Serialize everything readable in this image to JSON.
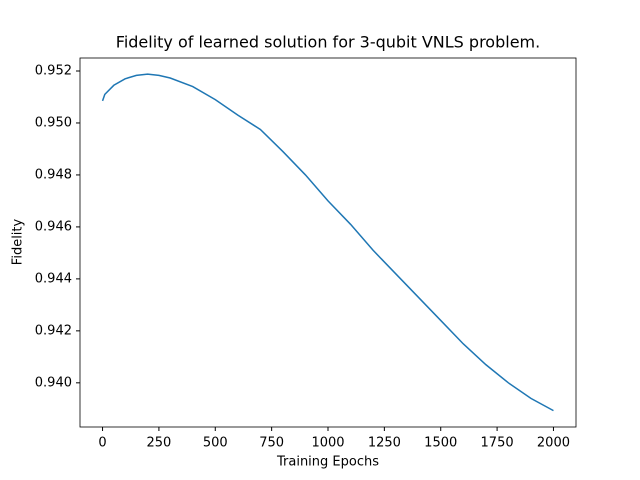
{
  "chart_data": {
    "type": "line",
    "title": "Fidelity of learned solution for 3-qubit VNLS problem.",
    "x_label": "Training Epochs",
    "y_label": "Fidelity",
    "x": [
      0,
      10,
      50,
      100,
      150,
      200,
      250,
      300,
      400,
      500,
      600,
      700,
      800,
      900,
      1000,
      1100,
      1200,
      1300,
      1400,
      1500,
      1600,
      1700,
      1800,
      1900,
      2000
    ],
    "series": [
      {
        "name": "Fidelity",
        "color": "#1f77b4",
        "values": [
          0.95085,
          0.9511,
          0.95145,
          0.9517,
          0.95183,
          0.95188,
          0.95183,
          0.95173,
          0.9514,
          0.9509,
          0.9503,
          0.94975,
          0.9489,
          0.948,
          0.947,
          0.9461,
          0.9451,
          0.9442,
          0.9433,
          0.9424,
          0.9415,
          0.9407,
          0.94,
          0.9394,
          0.93893
        ]
      }
    ],
    "xlim": [
      -100,
      2100
    ],
    "ylim": [
      0.9383,
      0.9525
    ],
    "xticks": [
      0,
      250,
      500,
      750,
      1000,
      1250,
      1500,
      1750,
      2000
    ],
    "yticks": [
      {
        "value": 0.94,
        "label": "0.940"
      },
      0.942,
      0.944,
      0.946,
      0.948,
      {
        "value": 0.95,
        "label": "0.950"
      },
      0.952
    ],
    "grid": false
  }
}
